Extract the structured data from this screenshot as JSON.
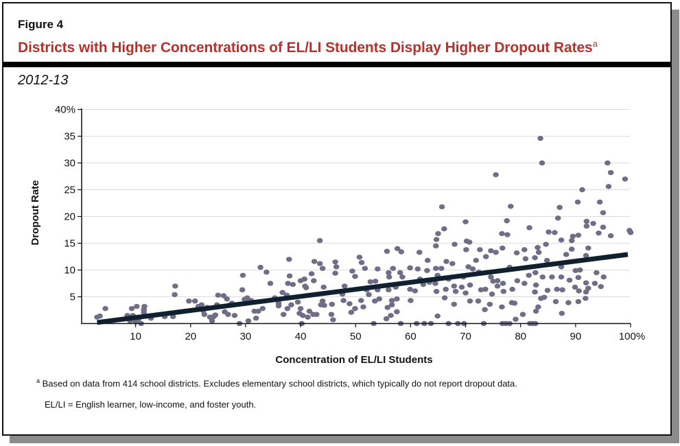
{
  "figure_label": "Figure 4",
  "title": "Districts with Higher Concentrations of EL/LI Students Display Higher Dropout Rates",
  "title_footnote_marker": "a",
  "subtitle": "2012-13",
  "footnotes": {
    "marker": "a",
    "note_a": "Based on data from 414 school districts. Excludes elementary school districts, which typically do not report dropout data.",
    "definition": "EL/LI = English learner, low-income, and foster youth."
  },
  "colors": {
    "title": "#b3322d",
    "points": "#6e6e86",
    "trendline": "#10202f",
    "grid": "#dcdcdc"
  },
  "chart_data": {
    "type": "scatter",
    "title": "Districts with Higher Concentrations of EL/LI Students Display Higher Dropout Rates",
    "xlabel": "Concentration of EL/LI Students",
    "ylabel": "Dropout Rate",
    "xlim": [
      0,
      100
    ],
    "ylim": [
      0,
      40
    ],
    "x_ticks": [
      {
        "v": 10,
        "label": "10"
      },
      {
        "v": 20,
        "label": "20"
      },
      {
        "v": 30,
        "label": "30"
      },
      {
        "v": 40,
        "label": "40"
      },
      {
        "v": 50,
        "label": "50"
      },
      {
        "v": 60,
        "label": "60"
      },
      {
        "v": 70,
        "label": "70"
      },
      {
        "v": 80,
        "label": "80"
      },
      {
        "v": 90,
        "label": "90"
      },
      {
        "v": 100,
        "label": "100%"
      }
    ],
    "y_ticks": [
      {
        "v": 5,
        "label": "5"
      },
      {
        "v": 10,
        "label": "10"
      },
      {
        "v": 15,
        "label": "15"
      },
      {
        "v": 20,
        "label": "20"
      },
      {
        "v": 25,
        "label": "25"
      },
      {
        "v": 30,
        "label": "30"
      },
      {
        "v": 35,
        "label": "35"
      },
      {
        "v": 40,
        "label": "40%"
      }
    ],
    "grid": "horizontal",
    "trendline": [
      [
        3,
        0.2
      ],
      [
        99.5,
        12.9
      ]
    ],
    "points": [
      [
        3,
        1.2
      ],
      [
        3.5,
        1.4
      ],
      [
        4.5,
        2.8
      ],
      [
        8.5,
        1.5
      ],
      [
        9,
        0.5
      ],
      [
        9.3,
        2.8
      ],
      [
        9.5,
        1.5
      ],
      [
        10,
        0.3
      ],
      [
        10.2,
        3.2
      ],
      [
        10.5,
        0.8
      ],
      [
        11,
        0
      ],
      [
        11.5,
        2.1
      ],
      [
        11.6,
        3.2
      ],
      [
        11.5,
        2.6
      ],
      [
        12.8,
        1
      ],
      [
        15.3,
        1.3
      ],
      [
        16.8,
        1.3
      ],
      [
        17.2,
        7
      ],
      [
        17.1,
        5.4
      ],
      [
        19.7,
        4.2
      ],
      [
        20.8,
        4.2
      ],
      [
        21.4,
        3.2
      ],
      [
        22,
        3.5
      ],
      [
        22.3,
        2.4
      ],
      [
        22.5,
        1.7
      ],
      [
        23,
        3
      ],
      [
        23.5,
        1.2
      ],
      [
        23.9,
        0.5
      ],
      [
        24.2,
        1.3
      ],
      [
        24.5,
        1.6
      ],
      [
        24.8,
        3.5
      ],
      [
        25,
        5.3
      ],
      [
        26,
        5.2
      ],
      [
        26.2,
        2.2
      ],
      [
        26.6,
        4.6
      ],
      [
        26.8,
        1.7
      ],
      [
        27,
        3.4
      ],
      [
        27.5,
        3.8
      ],
      [
        28,
        1.5
      ],
      [
        28.9,
        0
      ],
      [
        29.4,
        6.3
      ],
      [
        29.5,
        9
      ],
      [
        29.8,
        4.5
      ],
      [
        30,
        4.6
      ],
      [
        30.3,
        4.8
      ],
      [
        30.5,
        0.5
      ],
      [
        31,
        4.3
      ],
      [
        31.6,
        2.3
      ],
      [
        31.9,
        1
      ],
      [
        32.3,
        2.3
      ],
      [
        32.7,
        10.5
      ],
      [
        33.1,
        2.8
      ],
      [
        33.8,
        9.6
      ],
      [
        34.5,
        7.5
      ],
      [
        35.3,
        4.8
      ],
      [
        36,
        3.8
      ],
      [
        36,
        3.3
      ],
      [
        36.7,
        5.8
      ],
      [
        36.9,
        1.7
      ],
      [
        37.5,
        5.3
      ],
      [
        37.6,
        2.8
      ],
      [
        37.7,
        7.5
      ],
      [
        37.9,
        12
      ],
      [
        38,
        8.9
      ],
      [
        38.3,
        3.5
      ],
      [
        38.6,
        7.3
      ],
      [
        39.5,
        4
      ],
      [
        39.8,
        1.9
      ],
      [
        40,
        8
      ],
      [
        40,
        2.8
      ],
      [
        40.2,
        0
      ],
      [
        40.4,
        1.5
      ],
      [
        40.7,
        8.3
      ],
      [
        40.8,
        7
      ],
      [
        41,
        6.7
      ],
      [
        41.3,
        1.2
      ],
      [
        41.6,
        2.3
      ],
      [
        42,
        9.3
      ],
      [
        42.3,
        1.7
      ],
      [
        42.4,
        8
      ],
      [
        42.5,
        11.6
      ],
      [
        42.9,
        1.7
      ],
      [
        43.5,
        15.5
      ],
      [
        43.5,
        11.2
      ],
      [
        43.7,
        3.5
      ],
      [
        44,
        10.3
      ],
      [
        44.2,
        6.8
      ],
      [
        44,
        4.2
      ],
      [
        44.3,
        3.4
      ],
      [
        83.6,
        34.6
      ],
      [
        83.9,
        30
      ],
      [
        75.5,
        27.8
      ],
      [
        95.8,
        30
      ],
      [
        96.4,
        28.2
      ],
      [
        99,
        27
      ],
      [
        91.2,
        25
      ],
      [
        90.4,
        22.7
      ],
      [
        94.4,
        22.7
      ],
      [
        96,
        25.6
      ],
      [
        95,
        20.7
      ],
      [
        87.1,
        21.7
      ],
      [
        65.7,
        21.8
      ],
      [
        78.2,
        21.9
      ],
      [
        86.8,
        19.7
      ],
      [
        70,
        19
      ],
      [
        77.5,
        19.2
      ],
      [
        92,
        19.1
      ],
      [
        92,
        18.2
      ],
      [
        93.2,
        18.7
      ],
      [
        95,
        18
      ],
      [
        81.6,
        17.9
      ],
      [
        66.1,
        17.7
      ],
      [
        85.1,
        17.1
      ],
      [
        86.2,
        17
      ],
      [
        99.8,
        17.4
      ],
      [
        100,
        17
      ],
      [
        65,
        16.8
      ],
      [
        64.7,
        15.7
      ],
      [
        76.6,
        16.8
      ],
      [
        77.6,
        16.6
      ],
      [
        94.2,
        16.9
      ],
      [
        96.4,
        16.4
      ],
      [
        89.5,
        16.3
      ],
      [
        90.5,
        16.5
      ],
      [
        70.2,
        15.4
      ],
      [
        70.7,
        15.2
      ],
      [
        68,
        14.8
      ],
      [
        87.4,
        15.6
      ],
      [
        89.3,
        15.5
      ],
      [
        84.6,
        14.8
      ],
      [
        64.6,
        14.5
      ],
      [
        57.6,
        14
      ],
      [
        58.3,
        13.4
      ],
      [
        55.7,
        13.5
      ],
      [
        61.6,
        13.3
      ],
      [
        70.1,
        13.8
      ],
      [
        72.6,
        13.8
      ],
      [
        74.6,
        13.6
      ],
      [
        75.5,
        13.3
      ],
      [
        76.7,
        14.1
      ],
      [
        79.3,
        13.2
      ],
      [
        80.7,
        13.8
      ],
      [
        83.1,
        14.2
      ],
      [
        83.3,
        13.3
      ],
      [
        92.3,
        14.1
      ],
      [
        89.3,
        13.9
      ],
      [
        88.3,
        12.9
      ],
      [
        50.7,
        12.4
      ],
      [
        51.1,
        11.4
      ],
      [
        63.1,
        11.8
      ],
      [
        66.5,
        11.6
      ],
      [
        67.6,
        11.2
      ],
      [
        71.9,
        11.8
      ],
      [
        73.7,
        12.5
      ],
      [
        80.9,
        12.1
      ],
      [
        82.6,
        12.3
      ],
      [
        84.8,
        11.8
      ],
      [
        91.9,
        12.7
      ],
      [
        46.3,
        11.5
      ],
      [
        46.5,
        10.6
      ],
      [
        46.3,
        9.4
      ],
      [
        51.7,
        10.3
      ],
      [
        54,
        10.2
      ],
      [
        56.8,
        10.3
      ],
      [
        59.9,
        10.4
      ],
      [
        61.3,
        10.2
      ],
      [
        63,
        9.9
      ],
      [
        64.6,
        10.3
      ],
      [
        65.6,
        10.3
      ],
      [
        70.5,
        10.6
      ],
      [
        71.3,
        10.2
      ],
      [
        72.4,
        9.6
      ],
      [
        78,
        10.5
      ],
      [
        87.4,
        10.6
      ],
      [
        90,
        9.9
      ],
      [
        90.8,
        10
      ],
      [
        93.8,
        9.5
      ],
      [
        49.4,
        9.8
      ],
      [
        49.9,
        8.8
      ],
      [
        56,
        9.5
      ],
      [
        56.1,
        8.7
      ],
      [
        58.1,
        9.5
      ],
      [
        58.5,
        8.7
      ],
      [
        61.7,
        8.3
      ],
      [
        63.4,
        7.7
      ],
      [
        64.9,
        9
      ],
      [
        66.9,
        8.3
      ],
      [
        69.6,
        8.7
      ],
      [
        74.6,
        8.7
      ],
      [
        75,
        7.9
      ],
      [
        75.8,
        8
      ],
      [
        79.4,
        8
      ],
      [
        81.5,
        9
      ],
      [
        82.7,
        9.5
      ],
      [
        84,
        8.7
      ],
      [
        85.7,
        8.7
      ],
      [
        87.4,
        8.7
      ],
      [
        90.5,
        8.6
      ],
      [
        95.1,
        8.7
      ],
      [
        52.7,
        7.8
      ],
      [
        53.6,
        7.9
      ],
      [
        57.3,
        6.8
      ],
      [
        59.9,
        6.4
      ],
      [
        62.3,
        7.3
      ],
      [
        64.5,
        7.5
      ],
      [
        66.4,
        6.4
      ],
      [
        67.9,
        7
      ],
      [
        69.3,
        6.8
      ],
      [
        70.8,
        7.2
      ],
      [
        73.6,
        6.4
      ],
      [
        75.8,
        7
      ],
      [
        76.8,
        7.5
      ],
      [
        78.5,
        6.4
      ],
      [
        80.7,
        7.5
      ],
      [
        82.8,
        7.2
      ],
      [
        88.9,
        8.1
      ],
      [
        89.9,
        6.8
      ],
      [
        91.9,
        7.6
      ],
      [
        93.5,
        7.5
      ],
      [
        94.6,
        6.9
      ],
      [
        92.3,
        6.6
      ],
      [
        86.6,
        6.4
      ],
      [
        87.6,
        6.3
      ],
      [
        48,
        7
      ],
      [
        52,
        6.3
      ],
      [
        54,
        6.3
      ],
      [
        56,
        6.3
      ],
      [
        60.8,
        6.1
      ],
      [
        64.7,
        6
      ],
      [
        68.2,
        6
      ],
      [
        70,
        5.7
      ],
      [
        72.8,
        6.3
      ],
      [
        74.8,
        5.5
      ],
      [
        76.9,
        6
      ],
      [
        84.9,
        6.2
      ],
      [
        90.6,
        6.1
      ],
      [
        91.9,
        5.9
      ],
      [
        45.7,
        3.6
      ],
      [
        47.6,
        5.5
      ],
      [
        47.8,
        4.3
      ],
      [
        48.9,
        3.7
      ],
      [
        51,
        4.3
      ],
      [
        51.4,
        3.1
      ],
      [
        52.4,
        5.4
      ],
      [
        53.5,
        4.2
      ],
      [
        54.3,
        4.6
      ],
      [
        56.6,
        4.3
      ],
      [
        56.6,
        3.5
      ],
      [
        57.5,
        4.6
      ],
      [
        60,
        4.3
      ],
      [
        66.2,
        4.8
      ],
      [
        67.9,
        3.6
      ],
      [
        70.8,
        4.2
      ],
      [
        72.3,
        4.2
      ],
      [
        73.5,
        2.6
      ],
      [
        74.4,
        3.6
      ],
      [
        76.6,
        3.1
      ],
      [
        78.4,
        3.9
      ],
      [
        78.9,
        3.8
      ],
      [
        82.6,
        5.9
      ],
      [
        82.8,
        2.3
      ],
      [
        83.2,
        3.1
      ],
      [
        83.7,
        4.7
      ],
      [
        84.3,
        4.9
      ],
      [
        86.4,
        4.1
      ],
      [
        88.7,
        3.9
      ],
      [
        90.5,
        4.1
      ],
      [
        91.8,
        4.7
      ],
      [
        49.2,
        2.1
      ],
      [
        49.9,
        2.8
      ],
      [
        55.8,
        3
      ],
      [
        56.4,
        1.5
      ],
      [
        57.5,
        2.2
      ],
      [
        55.6,
        0.9
      ],
      [
        45.6,
        1.7
      ],
      [
        45.9,
        0.7
      ],
      [
        64.9,
        1.4
      ],
      [
        80.4,
        1.7
      ],
      [
        79.1,
        0.8
      ],
      [
        87.5,
        1.9
      ],
      [
        53.3,
        0
      ],
      [
        58.2,
        0
      ],
      [
        61.1,
        0
      ],
      [
        62.5,
        0
      ],
      [
        63.7,
        0
      ],
      [
        66.9,
        0
      ],
      [
        68.6,
        0
      ],
      [
        69.7,
        0
      ],
      [
        73.3,
        0
      ],
      [
        76.7,
        0
      ],
      [
        77.3,
        0
      ],
      [
        78,
        0
      ],
      [
        81.7,
        0
      ],
      [
        82.2,
        0
      ],
      [
        82.7,
        0
      ]
    ]
  }
}
